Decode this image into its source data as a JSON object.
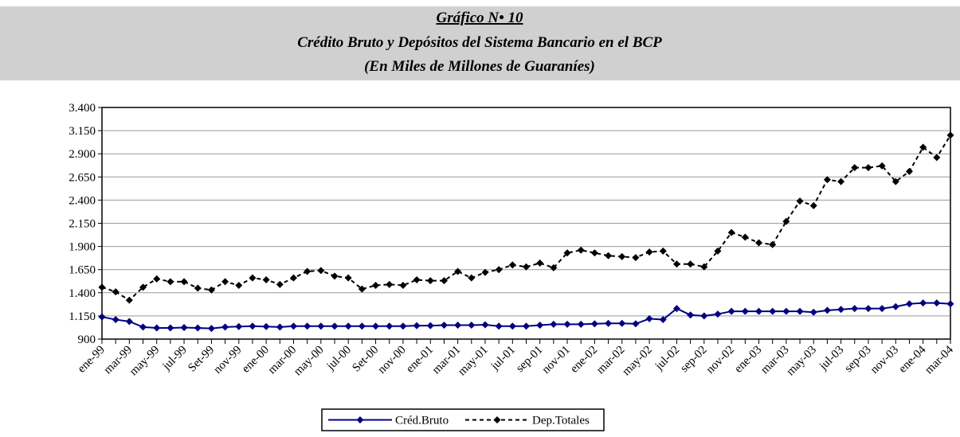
{
  "chart_data": {
    "type": "line",
    "title": "Gráfico N• 10",
    "subtitle": "Crédito Bruto y Depósitos del Sistema Bancario en el BCP",
    "unit_note": "(En Miles de Millones de Guaraníes)",
    "categories": [
      "ene-99",
      null,
      "mar-99",
      null,
      "may-99",
      null,
      "jul-99",
      null,
      "Set-99",
      null,
      "nov-99",
      null,
      "ene-00",
      null,
      "mar-00",
      null,
      "may-00",
      null,
      "jul-00",
      null,
      "Set-00",
      null,
      "nov-00",
      null,
      "ene-01",
      null,
      "mar-01",
      null,
      "may-01",
      null,
      "jul-01",
      null,
      "sep-01",
      null,
      "nov-01",
      null,
      "ene-02",
      null,
      "mar-02",
      null,
      "may-02",
      null,
      "jul-02",
      null,
      "sep-02",
      null,
      "nov-02",
      null,
      "ene-03",
      null,
      "mar-03",
      null,
      "may-03",
      null,
      "jul-03",
      null,
      "sep-03",
      null,
      "nov-03",
      null,
      "ene-04",
      null,
      "mar-04"
    ],
    "series": [
      {
        "name": "Créd.Bruto",
        "color": "#000080",
        "line_style": "solid",
        "values": [
          1140,
          1110,
          1090,
          1030,
          1020,
          1020,
          1025,
          1020,
          1015,
          1030,
          1035,
          1040,
          1035,
          1030,
          1040,
          1040,
          1040,
          1040,
          1040,
          1040,
          1040,
          1040,
          1040,
          1045,
          1045,
          1050,
          1050,
          1050,
          1055,
          1040,
          1040,
          1040,
          1050,
          1060,
          1060,
          1060,
          1065,
          1070,
          1070,
          1065,
          1120,
          1110,
          1230,
          1160,
          1150,
          1170,
          1200,
          1200,
          1200,
          1200,
          1200,
          1200,
          1190,
          1210,
          1220,
          1230,
          1230,
          1230,
          1250,
          1280,
          1290,
          1290,
          1280
        ]
      },
      {
        "name": "Dep.Totales",
        "color": "#000000",
        "line_style": "dashed",
        "values": [
          1460,
          1410,
          1320,
          1460,
          1550,
          1520,
          1520,
          1450,
          1430,
          1520,
          1480,
          1560,
          1540,
          1490,
          1560,
          1630,
          1640,
          1580,
          1560,
          1440,
          1480,
          1490,
          1480,
          1540,
          1530,
          1530,
          1630,
          1560,
          1620,
          1650,
          1700,
          1680,
          1720,
          1670,
          1830,
          1860,
          1830,
          1800,
          1790,
          1780,
          1840,
          1850,
          1710,
          1710,
          1680,
          1850,
          2050,
          2000,
          1940,
          1920,
          2170,
          2390,
          2340,
          2620,
          2600,
          2750,
          2750,
          2770,
          2600,
          2710,
          2970,
          2860,
          3100
        ]
      }
    ],
    "ylim": [
      900,
      3400
    ],
    "yticks": [
      {
        "value": 900,
        "label": "900"
      },
      {
        "value": 1150,
        "label": "1.150"
      },
      {
        "value": 1400,
        "label": "1.400"
      },
      {
        "value": 1650,
        "label": "1.650"
      },
      {
        "value": 1900,
        "label": "1.900"
      },
      {
        "value": 2150,
        "label": "2.150"
      },
      {
        "value": 2400,
        "label": "2.400"
      },
      {
        "value": 2650,
        "label": "2.650"
      },
      {
        "value": 2900,
        "label": "2.900"
      },
      {
        "value": 3150,
        "label": "3.150"
      },
      {
        "value": 3400,
        "label": "3.400"
      }
    ],
    "grid": true,
    "legend": "bottom"
  }
}
